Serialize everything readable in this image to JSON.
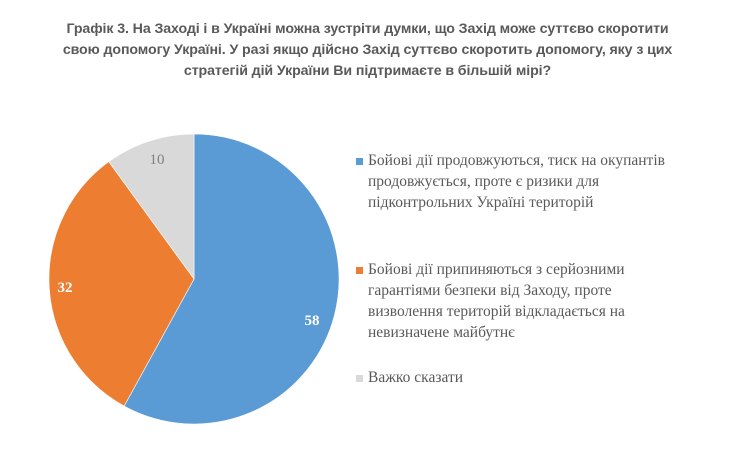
{
  "title": {
    "lines": [
      "Графік 3. На Заході і в Україні можна зустріти думки, що Захід може суттєво скоротити",
      "свою допомогу Україні. У разі якщо дійсно Захід суттєво скоротить допомогу, яку з цих",
      "стратегій дій України Ви підтримаєте в більшій мірі?"
    ]
  },
  "legend": {
    "items": [
      {
        "color": "#5B9BD5",
        "lines": [
          "Бойові дії продовжуються, тиск на окупантів",
          "продовжується, проте є ризики для",
          "підконтрольних Україні територій"
        ]
      },
      {
        "color": "#ED7D31",
        "lines": [
          "Бойові дії припиняються з серйозними",
          "гарантіями безпеки від Заходу, проте",
          "визволення територій відкладається на",
          "невизначене майбутнє"
        ]
      },
      {
        "color": "#D9D9D9",
        "lines": [
          "Важко сказати"
        ]
      }
    ]
  },
  "labels": {
    "blue": "58",
    "orange": "32",
    "gray": "10"
  },
  "chart_data": {
    "type": "pie",
    "title": "Графік 3. На Заході і в Україні можна зустріти думки, що Захід може суттєво скоротити свою допомогу Україні. У разі якщо дійсно Захід суттєво скоротить допомогу, яку з цих стратегій дій України Ви підтримаєте в більшій мірі?",
    "categories": [
      "Бойові дії продовжуються, тиск на окупантів продовжується, проте є ризики для підконтрольних Україні територій",
      "Бойові дії припиняються з серйозними гарантіями безпеки від Заходу, проте визволення територій відкладається на невизначене майбутнє",
      "Важко сказати"
    ],
    "values": [
      58,
      32,
      10
    ],
    "colors": [
      "#5B9BD5",
      "#ED7D31",
      "#D9D9D9"
    ],
    "data_labels": [
      "58",
      "32",
      "10"
    ],
    "legend_position": "right",
    "start_angle": "top, clockwise"
  }
}
